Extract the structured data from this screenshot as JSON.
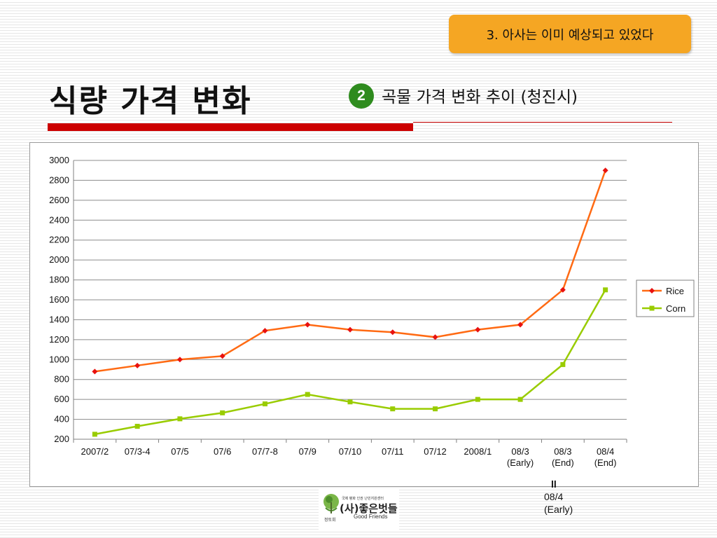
{
  "header": {
    "badge_text": "3. 아사는 이미 예상되고 있었다",
    "title": "식량 가격 변화",
    "section_number": "2",
    "subtitle": "곡물 가격 변화 추이 (청진시)"
  },
  "colors": {
    "badge": "#f5a623",
    "accent_red": "#cc0000",
    "number_circle": "#2e8b1e",
    "rice": "#ff6a13",
    "corn": "#99cc00"
  },
  "chart_data": {
    "type": "line",
    "categories": [
      [
        "2007/2"
      ],
      [
        "07/3-4"
      ],
      [
        "07/5"
      ],
      [
        "07/6"
      ],
      [
        "07/7-8"
      ],
      [
        "07/9"
      ],
      [
        "07/10"
      ],
      [
        "07/11"
      ],
      [
        "07/12"
      ],
      [
        "2008/1"
      ],
      [
        "08/3",
        "(Early)"
      ],
      [
        "08/3",
        "(End)"
      ],
      [
        "08/4",
        "(End)"
      ]
    ],
    "series": [
      {
        "name": "Rice",
        "values": [
          880,
          940,
          1000,
          1035,
          1290,
          1350,
          1300,
          1275,
          1225,
          1300,
          1350,
          1700,
          2900
        ],
        "color": "#ff6a13",
        "marker": "diamond"
      },
      {
        "name": "Corn",
        "values": [
          250,
          330,
          405,
          465,
          555,
          650,
          575,
          505,
          505,
          600,
          600,
          950,
          1700
        ],
        "color": "#99cc00",
        "marker": "square"
      }
    ],
    "ylim": [
      200,
      3000
    ],
    "yticks": [
      3000,
      2800,
      2600,
      2400,
      2200,
      2000,
      1800,
      1600,
      1400,
      1200,
      1000,
      800,
      600,
      400,
      200
    ],
    "grid": true,
    "legend_position": "right"
  },
  "footnote": {
    "marker": "ll",
    "lines": [
      "08/4",
      "(Early)"
    ]
  },
  "logo": {
    "small_text": "국제 평화 인권 난민지원센터",
    "name_ko": "(사)좋은벗들",
    "name_en": "Good Friends",
    "under_text": "정토회"
  }
}
